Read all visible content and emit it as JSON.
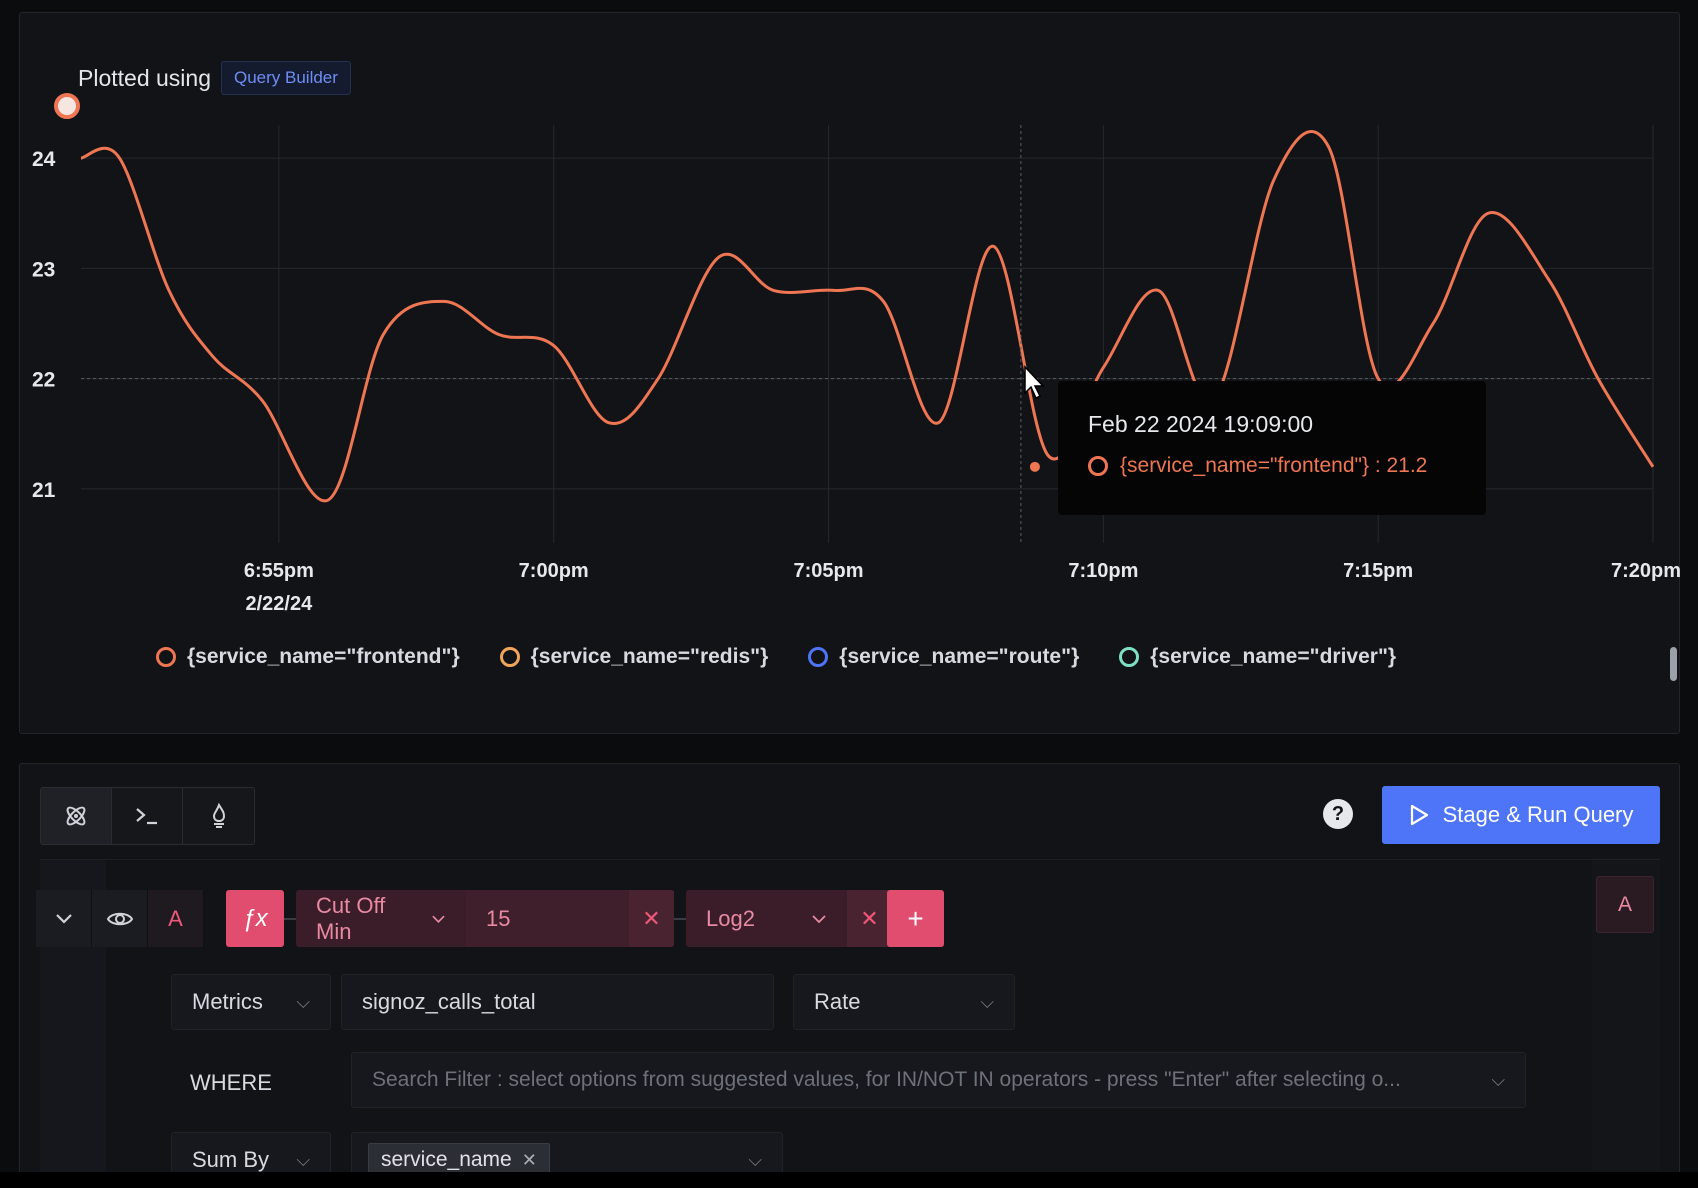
{
  "chart": {
    "plotted_using": "Plotted using",
    "builder_badge": "Query Builder",
    "tooltip": {
      "time": "Feb 22 2024 19:09:00",
      "series": "{service_name=\"frontend\"} : 21.2"
    },
    "legend": [
      {
        "label": "{service_name=\"frontend\"}",
        "color": "#ee7653"
      },
      {
        "label": "{service_name=\"redis\"}",
        "color": "#f0a55a"
      },
      {
        "label": "{service_name=\"route\"}",
        "color": "#4e74f8"
      },
      {
        "label": "{service_name=\"driver\"}",
        "color": "#7ee0c3"
      }
    ]
  },
  "chart_data": {
    "type": "line",
    "y_ticks": [
      "24",
      "23",
      "22",
      "21"
    ],
    "x_ticks": [
      "6:55pm",
      "7:00pm",
      "7:05pm",
      "7:10pm",
      "7:15pm",
      "7:20pm"
    ],
    "x_date_label": "2/22/24",
    "ylim": [
      20.6,
      24.3
    ],
    "series": [
      {
        "name": "{service_name=\"frontend\"}",
        "color": "#ee7653",
        "x_minutes": [
          -3.6,
          -2.9,
          -2.0,
          -1.2,
          -0.3,
          0.9,
          1.9,
          3.0,
          4.0,
          5.0,
          6.0,
          6.9,
          8.0,
          9.0,
          10.1,
          11.0,
          12.0,
          13.0,
          14.0,
          15.0,
          16.0,
          17.0,
          18.1,
          19.1,
          20.0,
          21.0,
          22.0,
          23.1,
          24.0,
          25.0
        ],
        "y": [
          24.0,
          24.0,
          22.8,
          22.2,
          21.8,
          20.9,
          22.4,
          22.7,
          22.4,
          22.3,
          21.6,
          22.0,
          23.1,
          22.8,
          22.8,
          22.7,
          21.6,
          23.2,
          21.3,
          22.1,
          22.8,
          21.8,
          23.8,
          24.1,
          22.0,
          22.5,
          23.5,
          22.9,
          22.0,
          21.2
        ]
      }
    ],
    "hover": {
      "x_minutes": 13.5,
      "value": 21.2
    },
    "grid": true,
    "legend_position": "bottom"
  },
  "toolbar": {
    "tabs": [
      {
        "name": "query-builder-tab",
        "icon": "atom-icon"
      },
      {
        "name": "clickhouse-query-tab",
        "icon": "terminal-icon"
      },
      {
        "name": "promql-tab",
        "icon": "prometheus-icon"
      }
    ],
    "run_label": "Stage & Run Query"
  },
  "query": {
    "letter": "A",
    "fx_label": "ƒx",
    "functions": [
      {
        "name": "Cut Off Min",
        "value": "15"
      },
      {
        "name": "Log2"
      }
    ],
    "add_label": "+",
    "right_letter": "A",
    "datasource": "Metrics",
    "metric_name": "signoz_calls_total",
    "aggregation": "Rate",
    "where_label": "WHERE",
    "where_placeholder": "Search Filter : select options from suggested values, for IN/NOT IN operators - press \"Enter\" after selecting o...",
    "groupby_op": "Sum By",
    "groupby_tag": "service_name"
  }
}
